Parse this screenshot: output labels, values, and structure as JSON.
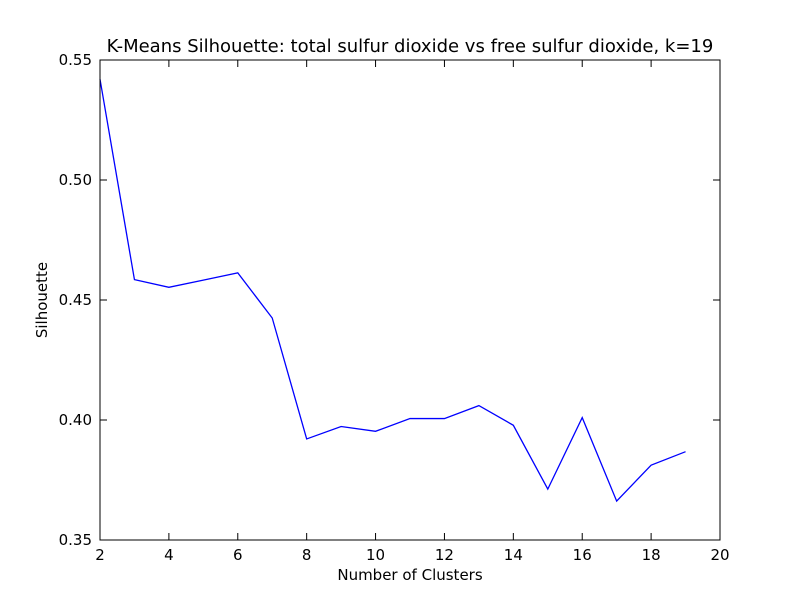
{
  "chart_data": {
    "type": "line",
    "title": "K-Means Silhouette: total sulfur dioxide vs free sulfur dioxide, k=19",
    "xlabel": "Number of Clusters",
    "ylabel": "Silhouette",
    "xlim": [
      2,
      20
    ],
    "ylim": [
      0.35,
      0.55
    ],
    "xticks": [
      2,
      4,
      6,
      8,
      10,
      12,
      14,
      16,
      18,
      20
    ],
    "xtick_labels": [
      "2",
      "4",
      "6",
      "8",
      "10",
      "12",
      "14",
      "16",
      "18",
      "20"
    ],
    "yticks": [
      0.35,
      0.4,
      0.45,
      0.5,
      0.55
    ],
    "ytick_labels": [
      "0.35",
      "0.40",
      "0.45",
      "0.50",
      "0.55"
    ],
    "grid": false,
    "series": [
      {
        "color": "#0000ff",
        "x": [
          2,
          3,
          4,
          5,
          6,
          7,
          8,
          9,
          10,
          11,
          12,
          13,
          14,
          15,
          16,
          17,
          18,
          19
        ],
        "values": [
          0.542,
          0.4585,
          0.4553,
          0.4583,
          0.4613,
          0.4425,
          0.3921,
          0.3973,
          0.3953,
          0.4006,
          0.4006,
          0.406,
          0.3978,
          0.3712,
          0.401,
          0.3662,
          0.3812,
          0.3868
        ]
      }
    ]
  }
}
